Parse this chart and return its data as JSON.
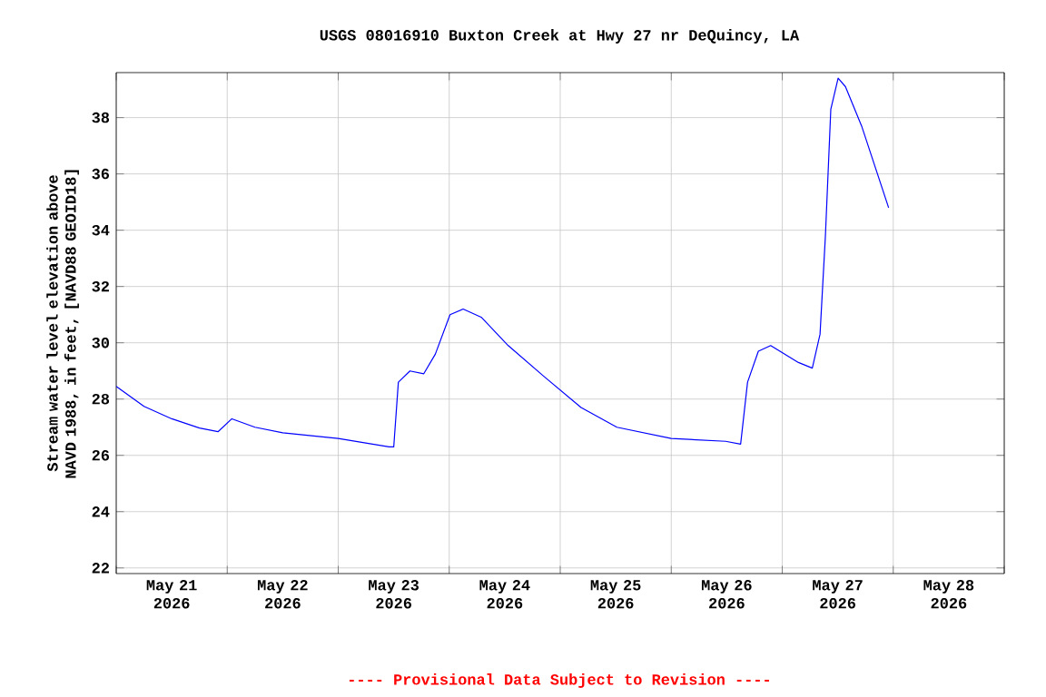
{
  "chart_data": {
    "type": "line",
    "title": "USGS 08016910 Buxton Creek at Hwy 27 nr DeQuincy, LA",
    "ylabel": "Stream water level elevation above NAVD 1988, in feet, [NAVD88 GEOID18]",
    "annotations": [
      "---- Provisional Data Subject to Revision ----"
    ],
    "x": [
      "2026-05-21T00:00",
      "2026-05-21T06:00",
      "2026-05-21T12:00",
      "2026-05-21T18:00",
      "2026-05-21T22:00",
      "2026-05-22T01:00",
      "2026-05-22T06:00",
      "2026-05-22T12:00",
      "2026-05-23T00:00",
      "2026-05-23T11:00",
      "2026-05-23T12:00",
      "2026-05-23T13:00",
      "2026-05-23T15:30",
      "2026-05-23T18:30",
      "2026-05-23T21:00",
      "2026-05-24T00:10",
      "2026-05-24T03:00",
      "2026-05-24T07:00",
      "2026-05-24T12:45",
      "2026-05-24T20:30",
      "2026-05-25T04:30",
      "2026-05-25T12:15",
      "2026-05-26T00:00",
      "2026-05-26T11:45",
      "2026-05-26T15:00",
      "2026-05-26T16:30",
      "2026-05-26T18:50",
      "2026-05-26T21:30",
      "2026-05-27T03:30",
      "2026-05-27T06:30",
      "2026-05-27T08:10",
      "2026-05-27T09:20",
      "2026-05-27T10:30",
      "2026-05-27T12:05",
      "2026-05-27T13:40",
      "2026-05-27T17:10",
      "2026-05-27T23:00"
    ],
    "series": [
      {
        "color": "#0000ff",
        "values": [
          28.45,
          27.74,
          27.3,
          26.97,
          26.84,
          27.3,
          27.0,
          26.8,
          26.6,
          26.3,
          26.3,
          28.6,
          29.0,
          28.9,
          29.6,
          31.0,
          31.2,
          30.9,
          29.9,
          28.8,
          27.7,
          27.0,
          26.6,
          26.5,
          26.4,
          28.6,
          29.7,
          29.9,
          29.3,
          29.1,
          30.3,
          33.8,
          38.3,
          39.4,
          39.1,
          37.7,
          34.8
        ]
      }
    ],
    "xlim": [
      "2026-05-21",
      "2026-05-29"
    ],
    "xticks": [
      {
        "value": "2026-05-21",
        "label": null
      },
      {
        "value": "2026-05-21T12:00",
        "label": "May 21 2026"
      },
      {
        "value": "2026-05-22",
        "label": null
      },
      {
        "value": "2026-05-22T12:00",
        "label": "May 22 2026"
      },
      {
        "value": "2026-05-23",
        "label": null
      },
      {
        "value": "2026-05-23T12:00",
        "label": "May 23 2026"
      },
      {
        "value": "2026-05-24",
        "label": null
      },
      {
        "value": "2026-05-24T12:00",
        "label": "May 24 2026"
      },
      {
        "value": "2026-05-25",
        "label": null
      },
      {
        "value": "2026-05-25T12:00",
        "label": "May 25 2026"
      },
      {
        "value": "2026-05-26",
        "label": null
      },
      {
        "value": "2026-05-26T12:00",
        "label": "May 26 2026"
      },
      {
        "value": "2026-05-27",
        "label": null
      },
      {
        "value": "2026-05-27T12:00",
        "label": "May 27 2026"
      },
      {
        "value": "2026-05-28",
        "label": null
      },
      {
        "value": "2026-05-28T12:00",
        "label": "May 28 2026"
      },
      {
        "value": "2026-05-29",
        "label": null
      }
    ],
    "ylim": [
      21.8,
      39.6
    ],
    "yticks": [
      22,
      24,
      26,
      28,
      30,
      32,
      34,
      36,
      38
    ],
    "grid": true
  }
}
